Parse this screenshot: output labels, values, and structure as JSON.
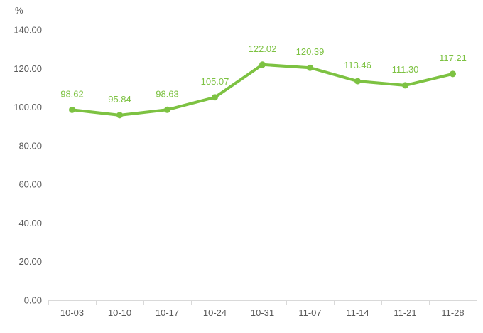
{
  "chart_data": {
    "type": "line",
    "title": "",
    "unit_label": "%",
    "xlabel": "",
    "ylabel": "%",
    "categories": [
      "10-03",
      "10-10",
      "10-17",
      "10-24",
      "10-31",
      "11-07",
      "11-14",
      "11-21",
      "11-28"
    ],
    "series": [
      {
        "name": "value",
        "values": [
          98.62,
          95.84,
          98.63,
          105.07,
          122.02,
          120.39,
          113.46,
          111.3,
          117.21
        ],
        "data_labels": [
          "98.62",
          "95.84",
          "98.63",
          "105.07",
          "122.02",
          "120.39",
          "113.46",
          "111.30",
          "117.21"
        ]
      }
    ],
    "ylim": [
      0,
      140
    ],
    "y_tick_step": 20,
    "y_tick_labels": [
      "0.00",
      "20.00",
      "40.00",
      "60.00",
      "80.00",
      "100.00",
      "120.00",
      "140.00"
    ],
    "grid": false,
    "legend_position": "none",
    "colors": {
      "line": "#7dc242",
      "marker": "#7dc242",
      "data_label": "#7dc242",
      "axis_text": "#595959",
      "axis_line": "#d9d9d9",
      "background": "#ffffff"
    }
  }
}
